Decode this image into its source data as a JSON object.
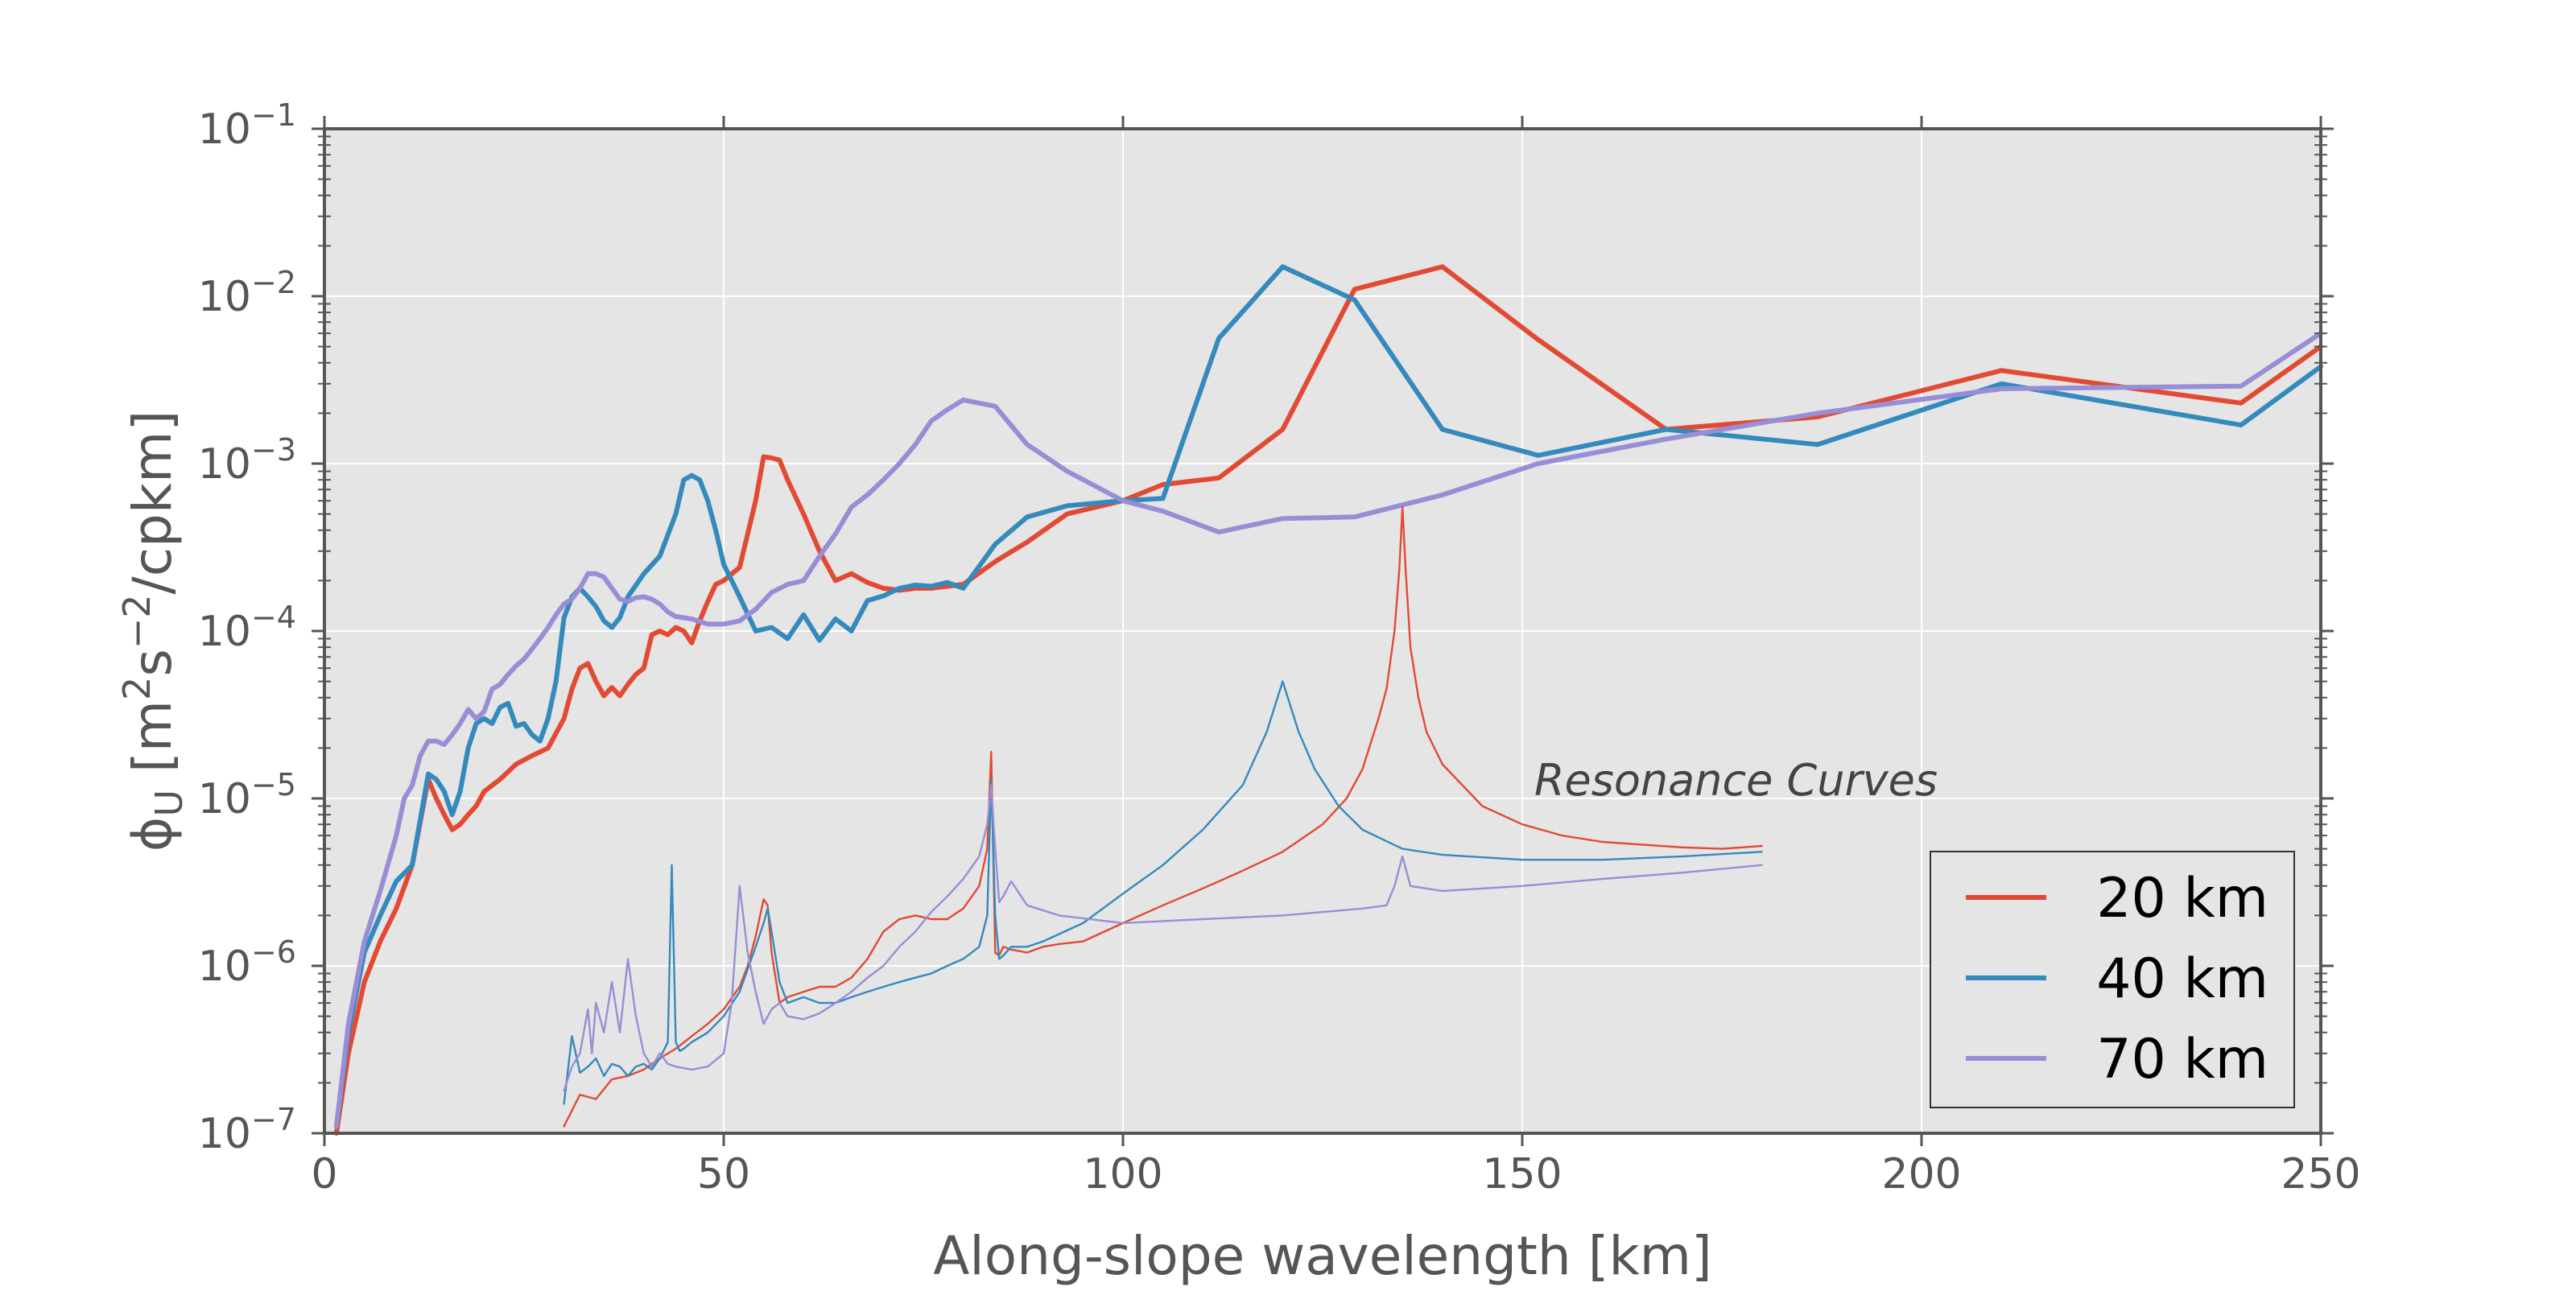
{
  "chart_data": {
    "type": "line",
    "title": "",
    "xlabel": "Along-slope wavelength [km]",
    "ylabel_parts": {
      "phi": "ϕ",
      "sub": "U",
      "text": " [m",
      "sup1": "2",
      "mid": "s",
      "sup2": "−2",
      "end": "/cpkm]"
    },
    "xlim": [
      0,
      250
    ],
    "ylim": [
      1e-07,
      0.1
    ],
    "yscale": "log",
    "grid": true,
    "legend_position": "lower-right",
    "x_ticks": [
      0,
      50,
      100,
      150,
      200,
      250
    ],
    "x_tick_labels": [
      "0",
      "50",
      "100",
      "150",
      "200",
      "250"
    ],
    "y_ticks": [
      {
        "base": "10",
        "exp": "−1",
        "value": 0.1
      },
      {
        "base": "10",
        "exp": "−2",
        "value": 0.01
      },
      {
        "base": "10",
        "exp": "−3",
        "value": 0.001
      },
      {
        "base": "10",
        "exp": "−4",
        "value": 0.0001
      },
      {
        "base": "10",
        "exp": "−5",
        "value": 1e-05
      },
      {
        "base": "10",
        "exp": "−6",
        "value": 1e-06
      },
      {
        "base": "10",
        "exp": "−7",
        "value": 1e-07
      }
    ],
    "annotation": "Resonance Curves",
    "colors": {
      "red": "#E24A33",
      "blue": "#348ABD",
      "purple": "#988ED5",
      "plot_bg": "#E5E5E5",
      "grid": "#FFFFFF",
      "spine": "#555555",
      "text": "#555555"
    },
    "series": [
      {
        "name": "20 km",
        "color": "#E24A33",
        "kind": "spectrum",
        "x": [
          1.5,
          3,
          5,
          7,
          9,
          11,
          13,
          14,
          15,
          16,
          17,
          18,
          19,
          20,
          22,
          24,
          26,
          28,
          30,
          31,
          32,
          33,
          34,
          35,
          36,
          37,
          38,
          39,
          40,
          41,
          42,
          43,
          44,
          45,
          46,
          47,
          48,
          49,
          50,
          52,
          54,
          55,
          56,
          57,
          58,
          60,
          62,
          64,
          66,
          68,
          70,
          72,
          74,
          76,
          78,
          80,
          84,
          88,
          93,
          100,
          105,
          112,
          120,
          129,
          140,
          152,
          168,
          187,
          210,
          240,
          250
        ],
        "y": [
          1e-07,
          3e-07,
          8e-07,
          1.4e-06,
          2.2e-06,
          4e-06,
          1.3e-05,
          1e-05,
          8e-06,
          6.5e-06,
          7e-06,
          8e-06,
          9e-06,
          1.1e-05,
          1.3e-05,
          1.6e-05,
          1.8e-05,
          2e-05,
          3e-05,
          4.5e-05,
          6e-05,
          6.4e-05,
          5e-05,
          4.1e-05,
          4.6e-05,
          4.1e-05,
          4.8e-05,
          5.5e-05,
          6e-05,
          9.5e-05,
          0.0001,
          9.5e-05,
          0.000105,
          0.0001,
          8.5e-05,
          0.000115,
          0.00015,
          0.00019,
          0.0002,
          0.00024,
          0.0006,
          0.0011,
          0.00108,
          0.00105,
          0.0008,
          0.0005,
          0.0003,
          0.0002,
          0.00022,
          0.000195,
          0.00018,
          0.000175,
          0.00018,
          0.00018,
          0.000185,
          0.00019,
          0.00026,
          0.00034,
          0.0005,
          0.0006,
          0.00075,
          0.00082,
          0.0016,
          0.011,
          0.015,
          0.0055,
          0.0016,
          0.0019,
          0.0036,
          0.0023,
          0.005
        ]
      },
      {
        "name": "40 km",
        "color": "#348ABD",
        "kind": "spectrum",
        "x": [
          1.5,
          3,
          5,
          7,
          9,
          11,
          13,
          14,
          15,
          16,
          17,
          18,
          19,
          20,
          21,
          22,
          23,
          24,
          25,
          26,
          27,
          28,
          29,
          30,
          31,
          32,
          33,
          34,
          35,
          36,
          37,
          38,
          40,
          42,
          44,
          45,
          46,
          47,
          48,
          49,
          50,
          52,
          54,
          56,
          58,
          60,
          62,
          64,
          66,
          68,
          70,
          72,
          74,
          76,
          78,
          80,
          84,
          88,
          93,
          100,
          105,
          112,
          120,
          129,
          140,
          152,
          168,
          187,
          210,
          240,
          250
        ],
        "y": [
          1.1e-07,
          4e-07,
          1.2e-06,
          2e-06,
          3.2e-06,
          4e-06,
          1.4e-05,
          1.3e-05,
          1.1e-05,
          8e-06,
          1.1e-05,
          2e-05,
          2.8e-05,
          3e-05,
          2.8e-05,
          3.5e-05,
          3.7e-05,
          2.7e-05,
          2.8e-05,
          2.4e-05,
          2.2e-05,
          3e-05,
          5e-05,
          0.00012,
          0.00016,
          0.00018,
          0.00016,
          0.00014,
          0.000115,
          0.000105,
          0.00012,
          0.00016,
          0.00022,
          0.00028,
          0.0005,
          0.0008,
          0.00085,
          0.0008,
          0.0006,
          0.0004,
          0.00025,
          0.00016,
          0.0001,
          0.000105,
          9e-05,
          0.000125,
          8.8e-05,
          0.000118,
          0.0001,
          0.000152,
          0.000162,
          0.00018,
          0.000188,
          0.000185,
          0.000195,
          0.00018,
          0.00033,
          0.00048,
          0.00056,
          0.0006,
          0.00062,
          0.0056,
          0.015,
          0.0095,
          0.0016,
          0.00112,
          0.0016,
          0.0013,
          0.003,
          0.0017,
          0.0038
        ]
      },
      {
        "name": "70 km",
        "color": "#988ED5",
        "kind": "spectrum",
        "x": [
          1.5,
          3,
          5,
          7,
          9,
          10,
          11,
          12,
          13,
          14,
          15,
          16,
          17,
          18,
          19,
          20,
          21,
          22,
          23,
          24,
          25,
          26,
          27,
          28,
          29,
          30,
          31,
          32,
          33,
          34,
          35,
          36,
          37,
          38,
          39,
          40,
          41,
          42,
          43,
          44,
          46,
          48,
          50,
          52,
          54,
          56,
          58,
          60,
          62,
          64,
          66,
          68,
          70,
          72,
          74,
          76,
          78,
          80,
          84,
          88,
          93,
          100,
          105,
          112,
          120,
          129,
          140,
          152,
          168,
          187,
          210,
          240,
          250
        ],
        "y": [
          1.1e-07,
          4.5e-07,
          1.4e-06,
          2.8e-06,
          6e-06,
          1e-05,
          1.2e-05,
          1.8e-05,
          2.2e-05,
          2.2e-05,
          2.1e-05,
          2.4e-05,
          2.8e-05,
          3.4e-05,
          3e-05,
          3.3e-05,
          4.5e-05,
          4.8e-05,
          5.5e-05,
          6.2e-05,
          6.8e-05,
          7.8e-05,
          9e-05,
          0.000105,
          0.000125,
          0.000145,
          0.000155,
          0.00018,
          0.00022,
          0.00022,
          0.00021,
          0.00018,
          0.000155,
          0.00015,
          0.000158,
          0.00016,
          0.000155,
          0.000145,
          0.00013,
          0.000122,
          0.000118,
          0.00011,
          0.00011,
          0.000115,
          0.000135,
          0.00017,
          0.00019,
          0.0002,
          0.00028,
          0.00038,
          0.00055,
          0.00065,
          0.0008,
          0.001,
          0.0013,
          0.0018,
          0.0021,
          0.0024,
          0.0022,
          0.0013,
          0.0009,
          0.0006,
          0.00052,
          0.00039,
          0.00047,
          0.00048,
          0.00065,
          0.001,
          0.0014,
          0.002,
          0.0028,
          0.0029,
          0.006
        ]
      },
      {
        "name": "20 km",
        "color": "#E24A33",
        "kind": "resonance",
        "x": [
          30,
          32,
          34,
          36,
          38,
          40,
          42,
          44,
          46,
          48,
          50,
          52,
          53,
          54,
          55,
          55.5,
          56,
          57,
          58,
          60,
          62,
          64,
          66,
          68,
          70,
          72,
          74,
          76,
          78,
          80,
          82,
          83,
          83.5,
          84,
          84.5,
          85,
          86,
          88,
          90,
          92,
          95,
          100,
          105,
          110,
          115,
          120,
          125,
          128,
          130,
          132,
          133,
          134,
          134.6,
          135,
          135.4,
          136,
          137,
          138,
          140,
          145,
          150,
          155,
          160,
          170,
          175,
          180
        ],
        "y": [
          1.1e-07,
          1.7e-07,
          1.6e-07,
          2.1e-07,
          2.2e-07,
          2.4e-07,
          2.8e-07,
          3.2e-07,
          3.8e-07,
          4.5e-07,
          5.5e-07,
          7.5e-07,
          1e-06,
          1.5e-06,
          2.5e-06,
          2.3e-06,
          1.2e-06,
          6e-07,
          6.5e-07,
          7e-07,
          7.5e-07,
          7.5e-07,
          8.5e-07,
          1.1e-06,
          1.6e-06,
          1.9e-06,
          2e-06,
          1.9e-06,
          1.9e-06,
          2.2e-06,
          3e-06,
          5e-06,
          1.9e-05,
          1.2e-06,
          1.15e-06,
          1.3e-06,
          1.25e-06,
          1.2e-06,
          1.3e-06,
          1.35e-06,
          1.4e-06,
          1.8e-06,
          2.3e-06,
          2.9e-06,
          3.7e-06,
          4.8e-06,
          7e-06,
          1e-05,
          1.5e-05,
          3e-05,
          4.5e-05,
          0.0001,
          0.00023,
          0.00055,
          0.00023,
          8e-05,
          4e-05,
          2.5e-05,
          1.6e-05,
          9e-06,
          7e-06,
          6e-06,
          5.5e-06,
          5.1e-06,
          5e-06,
          5.2e-06
        ]
      },
      {
        "name": "40 km",
        "color": "#348ABD",
        "kind": "resonance",
        "x": [
          30,
          31,
          32,
          33,
          34,
          35,
          36,
          37,
          38,
          39,
          40,
          41,
          42,
          43,
          43.5,
          44,
          44.5,
          45,
          46,
          48,
          50,
          52,
          54,
          55,
          55.5,
          56,
          57,
          58,
          60,
          62,
          64,
          66,
          68,
          70,
          72,
          74,
          76,
          78,
          80,
          82,
          83,
          83.5,
          84,
          84.5,
          85,
          86,
          88,
          90,
          95,
          100,
          105,
          110,
          115,
          118,
          120,
          122,
          124,
          127,
          130,
          135,
          140,
          150,
          160,
          170,
          180
        ],
        "y": [
          1.5e-07,
          3.8e-07,
          2.3e-07,
          2.5e-07,
          2.8e-07,
          2.2e-07,
          2.6e-07,
          2.5e-07,
          2.2e-07,
          2.5e-07,
          2.6e-07,
          2.4e-07,
          2.8e-07,
          3.5e-07,
          4e-06,
          3.5e-07,
          3.1e-07,
          3.2e-07,
          3.5e-07,
          4e-07,
          5e-07,
          7e-07,
          1.3e-06,
          1.8e-06,
          2.2e-06,
          1.6e-06,
          8e-07,
          6e-07,
          6.5e-07,
          6e-07,
          6e-07,
          6.5e-07,
          7e-07,
          7.5e-07,
          8e-07,
          8.5e-07,
          9e-07,
          1e-06,
          1.1e-06,
          1.3e-06,
          2e-06,
          1.3e-05,
          2e-06,
          1.1e-06,
          1.15e-06,
          1.3e-06,
          1.3e-06,
          1.4e-06,
          1.8e-06,
          2.7e-06,
          4e-06,
          6.5e-06,
          1.2e-05,
          2.5e-05,
          5e-05,
          2.5e-05,
          1.5e-05,
          9e-06,
          6.5e-06,
          5e-06,
          4.6e-06,
          4.3e-06,
          4.3e-06,
          4.5e-06,
          4.8e-06
        ]
      },
      {
        "name": "70 km",
        "color": "#988ED5",
        "kind": "resonance",
        "x": [
          30,
          31,
          32,
          33,
          33.5,
          34,
          35,
          36,
          37,
          38,
          39,
          40,
          41,
          42,
          43,
          44,
          46,
          48,
          50,
          51,
          52,
          53,
          54,
          55,
          56,
          57,
          58,
          60,
          62,
          64,
          66,
          68,
          70,
          72,
          74,
          76,
          78,
          80,
          82,
          83,
          83.5,
          84,
          84.5,
          85,
          86,
          88,
          92,
          100,
          110,
          120,
          130,
          133,
          134,
          135,
          136,
          140,
          150,
          160,
          170,
          180
        ],
        "y": [
          1.8e-07,
          2.5e-07,
          3e-07,
          5.5e-07,
          3e-07,
          6e-07,
          4e-07,
          8e-07,
          4e-07,
          1.1e-06,
          5e-07,
          3e-07,
          2.5e-07,
          3e-07,
          2.6e-07,
          2.5e-07,
          2.4e-07,
          2.5e-07,
          3e-07,
          6e-07,
          3e-06,
          1.2e-06,
          7e-07,
          4.5e-07,
          5.5e-07,
          6e-07,
          5e-07,
          4.8e-07,
          5.2e-07,
          6e-07,
          7e-07,
          8.5e-07,
          1e-06,
          1.3e-06,
          1.6e-06,
          2.1e-06,
          2.6e-06,
          3.3e-06,
          4.5e-06,
          7e-06,
          1.2e-05,
          5e-06,
          2.4e-06,
          2.6e-06,
          3.2e-06,
          2.3e-06,
          2e-06,
          1.8e-06,
          1.9e-06,
          2e-06,
          2.2e-06,
          2.3e-06,
          3e-06,
          4.5e-06,
          3e-06,
          2.8e-06,
          3e-06,
          3.3e-06,
          3.6e-06,
          4e-06
        ]
      }
    ]
  }
}
